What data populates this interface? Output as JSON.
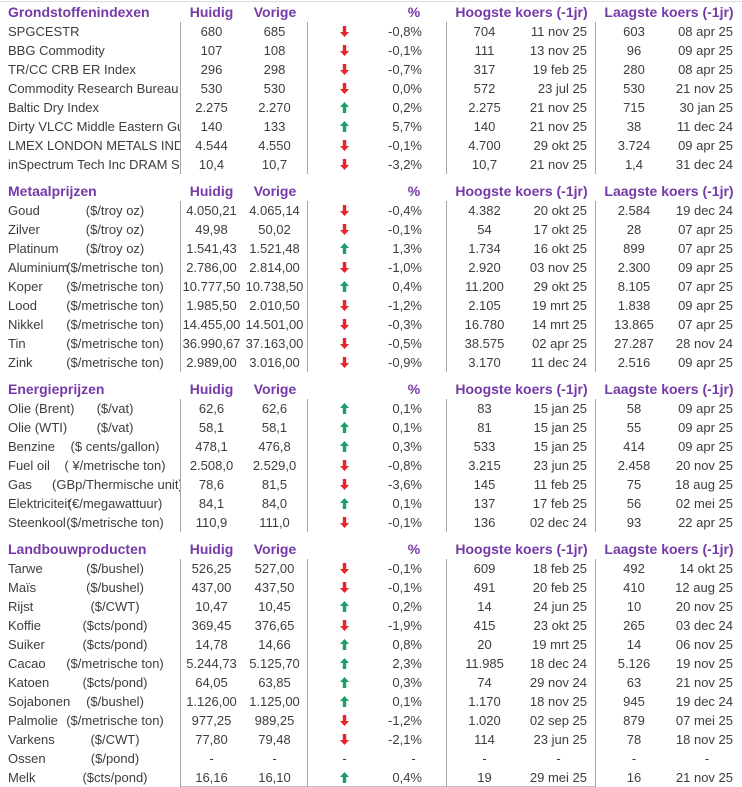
{
  "colors": {
    "header_purple": "#7639a8",
    "up_green": "#1d9e68",
    "down_red": "#e82329",
    "divider": "#a6a6a6",
    "text": "#3d3d3d"
  },
  "table": {
    "column_headers": {
      "current": "Huidig",
      "previous": "Vorige",
      "percent": "%",
      "high": "Hoogste koers (-1jr)",
      "low": "Laagste koers (-1jr)"
    },
    "sections": [
      {
        "title": "Grondstoffenindexen",
        "rows": [
          {
            "name": "SPGCESTR",
            "unit": "",
            "current": "680",
            "previous": "685",
            "trend": "down",
            "percent": "-0,8%",
            "high": "704",
            "high_date": "11 nov 25",
            "low": "603",
            "low_date": "08 apr 25"
          },
          {
            "name": "BBG Commodity",
            "unit": "",
            "current": "107",
            "previous": "108",
            "trend": "down",
            "percent": "-0,1%",
            "high": "111",
            "high_date": "13 nov 25",
            "low": "96",
            "low_date": "09 apr 25"
          },
          {
            "name": "TR/CC CRB ER Index",
            "unit": "",
            "current": "296",
            "previous": "298",
            "trend": "down",
            "percent": "-0,7%",
            "high": "317",
            "high_date": "19 feb 25",
            "low": "280",
            "low_date": "08 apr 25"
          },
          {
            "name": "Commodity Research Bureau BLS",
            "unit": "",
            "current": "530",
            "previous": "530",
            "trend": "down",
            "percent": "0,0%",
            "high": "572",
            "high_date": "23 jul 25",
            "low": "530",
            "low_date": "21 nov 25"
          },
          {
            "name": "Baltic Dry Index",
            "unit": "",
            "current": "2.275",
            "previous": "2.270",
            "trend": "up",
            "percent": "0,2%",
            "high": "2.275",
            "high_date": "21 nov 25",
            "low": "715",
            "low_date": "30 jan 25"
          },
          {
            "name": "Dirty VLCC Middle Eastern Gulf",
            "unit": "",
            "current": "140",
            "previous": "133",
            "trend": "up",
            "percent": "5,7%",
            "high": "140",
            "high_date": "21 nov 25",
            "low": "38",
            "low_date": "11 dec 24"
          },
          {
            "name": "LMEX LONDON METALS INDEX",
            "unit": "",
            "current": "4.544",
            "previous": "4.550",
            "trend": "down",
            "percent": "-0,1%",
            "high": "4.700",
            "high_date": "29 okt 25",
            "low": "3.724",
            "low_date": "09 apr 25"
          },
          {
            "name": "inSpectrum Tech Inc DRAM Spot",
            "unit": "",
            "current": "10,4",
            "previous": "10,7",
            "trend": "down",
            "percent": "-3,2%",
            "high": "10,7",
            "high_date": "21 nov 25",
            "low": "1,4",
            "low_date": "31 dec 24"
          }
        ]
      },
      {
        "title": "Metaalprijzen",
        "rows": [
          {
            "name": "Goud",
            "unit": "($/troy oz)",
            "current": "4.050,21",
            "previous": "4.065,14",
            "trend": "down",
            "percent": "-0,4%",
            "high": "4.382",
            "high_date": "20 okt 25",
            "low": "2.584",
            "low_date": "19 dec 24"
          },
          {
            "name": "Zilver",
            "unit": "($/troy oz)",
            "current": "49,98",
            "previous": "50,02",
            "trend": "down",
            "percent": "-0,1%",
            "high": "54",
            "high_date": "17 okt 25",
            "low": "28",
            "low_date": "07 apr 25"
          },
          {
            "name": "Platinum",
            "unit": "($/troy oz)",
            "current": "1.541,43",
            "previous": "1.521,48",
            "trend": "up",
            "percent": "1,3%",
            "high": "1.734",
            "high_date": "16 okt 25",
            "low": "899",
            "low_date": "07 apr 25"
          },
          {
            "name": "Aluminium",
            "unit": "($/metrische ton)",
            "current": "2.786,00",
            "previous": "2.814,00",
            "trend": "down",
            "percent": "-1,0%",
            "high": "2.920",
            "high_date": "03 nov 25",
            "low": "2.300",
            "low_date": "09 apr 25"
          },
          {
            "name": "Koper",
            "unit": "($/metrische ton)",
            "current": "10.777,50",
            "previous": "10.738,50",
            "trend": "up",
            "percent": "0,4%",
            "high": "11.200",
            "high_date": "29 okt 25",
            "low": "8.105",
            "low_date": "07 apr 25"
          },
          {
            "name": "Lood",
            "unit": "($/metrische ton)",
            "current": "1.985,50",
            "previous": "2.010,50",
            "trend": "down",
            "percent": "-1,2%",
            "high": "2.105",
            "high_date": "19 mrt 25",
            "low": "1.838",
            "low_date": "09 apr 25"
          },
          {
            "name": "Nikkel",
            "unit": "($/metrische ton)",
            "current": "14.455,00",
            "previous": "14.501,00",
            "trend": "down",
            "percent": "-0,3%",
            "high": "16.780",
            "high_date": "14 mrt 25",
            "low": "13.865",
            "low_date": "07 apr 25"
          },
          {
            "name": "Tin",
            "unit": "($/metrische ton)",
            "current": "36.990,67",
            "previous": "37.163,00",
            "trend": "down",
            "percent": "-0,5%",
            "high": "38.575",
            "high_date": "02 apr 25",
            "low": "27.287",
            "low_date": "28 nov 24"
          },
          {
            "name": "Zink",
            "unit": "($/metrische ton)",
            "current": "2.989,00",
            "previous": "3.016,00",
            "trend": "down",
            "percent": "-0,9%",
            "high": "3.170",
            "high_date": "11 dec 24",
            "low": "2.516",
            "low_date": "09 apr 25"
          }
        ]
      },
      {
        "title": "Energieprijzen",
        "rows": [
          {
            "name": "Olie (Brent)",
            "unit": "($/vat)",
            "current": "62,6",
            "previous": "62,6",
            "trend": "up",
            "percent": "0,1%",
            "high": "83",
            "high_date": "15 jan 25",
            "low": "58",
            "low_date": "09 apr 25"
          },
          {
            "name": "Olie (WTI)",
            "unit": "($/vat)",
            "current": "58,1",
            "previous": "58,1",
            "trend": "up",
            "percent": "0,1%",
            "high": "81",
            "high_date": "15 jan 25",
            "low": "55",
            "low_date": "09 apr 25"
          },
          {
            "name": "Benzine",
            "unit": "($ cents/gallon)",
            "current": "478,1",
            "previous": "476,8",
            "trend": "up",
            "percent": "0,3%",
            "high": "533",
            "high_date": "15 jan 25",
            "low": "414",
            "low_date": "09 apr 25"
          },
          {
            "name": "Fuel oil",
            "unit": "( ¥/metrische ton)",
            "current": "2.508,0",
            "previous": "2.529,0",
            "trend": "down",
            "percent": "-0,8%",
            "high": "3.215",
            "high_date": "23 jun 25",
            "low": "2.458",
            "low_date": "20 nov 25"
          },
          {
            "name": "Gas",
            "unit": "(GBp/Thermische unit)",
            "current": "78,6",
            "previous": "81,5",
            "trend": "down",
            "percent": "-3,6%",
            "high": "145",
            "high_date": "11 feb 25",
            "low": "75",
            "low_date": "18 aug 25"
          },
          {
            "name": "Elektriciteit",
            "unit": "(€/megawattuur)",
            "current": "84,1",
            "previous": "84,0",
            "trend": "up",
            "percent": "0,1%",
            "high": "137",
            "high_date": "17 feb 25",
            "low": "56",
            "low_date": "02 mei 25"
          },
          {
            "name": "Steenkool",
            "unit": "($/metrische ton)",
            "current": "110,9",
            "previous": "111,0",
            "trend": "down",
            "percent": "-0,1%",
            "high": "136",
            "high_date": "02 dec 24",
            "low": "93",
            "low_date": "22 apr 25"
          }
        ]
      },
      {
        "title": "Landbouwproducten",
        "rows": [
          {
            "name": "Tarwe",
            "unit": "($/bushel)",
            "current": "526,25",
            "previous": "527,00",
            "trend": "down",
            "percent": "-0,1%",
            "high": "609",
            "high_date": "18 feb 25",
            "low": "492",
            "low_date": "14 okt 25"
          },
          {
            "name": "Maïs",
            "unit": "($/bushel)",
            "current": "437,00",
            "previous": "437,50",
            "trend": "down",
            "percent": "-0,1%",
            "high": "491",
            "high_date": "20 feb 25",
            "low": "410",
            "low_date": "12 aug 25"
          },
          {
            "name": "Rijst",
            "unit": "($/CWT)",
            "current": "10,47",
            "previous": "10,45",
            "trend": "up",
            "percent": "0,2%",
            "high": "14",
            "high_date": "24 jun 25",
            "low": "10",
            "low_date": "20 nov 25"
          },
          {
            "name": "Koffie",
            "unit": "($cts/pond)",
            "current": "369,45",
            "previous": "376,65",
            "trend": "down",
            "percent": "-1,9%",
            "high": "415",
            "high_date": "23 okt 25",
            "low": "265",
            "low_date": "03 dec 24"
          },
          {
            "name": "Suiker",
            "unit": "($cts/pond)",
            "current": "14,78",
            "previous": "14,66",
            "trend": "up",
            "percent": "0,8%",
            "high": "20",
            "high_date": "19 mrt 25",
            "low": "14",
            "low_date": "06 nov 25"
          },
          {
            "name": "Cacao",
            "unit": "($/metrische ton)",
            "current": "5.244,73",
            "previous": "5.125,70",
            "trend": "up",
            "percent": "2,3%",
            "high": "11.985",
            "high_date": "18 dec 24",
            "low": "5.126",
            "low_date": "19 nov 25"
          },
          {
            "name": "Katoen",
            "unit": "($cts/pond)",
            "current": "64,05",
            "previous": "63,85",
            "trend": "up",
            "percent": "0,3%",
            "high": "74",
            "high_date": "29 nov 24",
            "low": "63",
            "low_date": "21 nov 25"
          },
          {
            "name": "Sojabonen",
            "unit": "($/bushel)",
            "current": "1.126,00",
            "previous": "1.125,00",
            "trend": "up",
            "percent": "0,1%",
            "high": "1.170",
            "high_date": "18 nov 25",
            "low": "945",
            "low_date": "19 dec 24"
          },
          {
            "name": "Palmolie",
            "unit": "($/metrische ton)",
            "current": "977,25",
            "previous": "989,25",
            "trend": "down",
            "percent": "-1,2%",
            "high": "1.020",
            "high_date": "02 sep 25",
            "low": "879",
            "low_date": "07 mei 25"
          },
          {
            "name": "Varkens",
            "unit": "($/CWT)",
            "current": "77,80",
            "previous": "79,48",
            "trend": "down",
            "percent": "-2,1%",
            "high": "114",
            "high_date": "23 jun 25",
            "low": "78",
            "low_date": "18 nov 25"
          },
          {
            "name": "Ossen",
            "unit": "($/pond)",
            "current": "-",
            "previous": "-",
            "trend": "none",
            "percent": "-",
            "high": "-",
            "high_date": "-",
            "low": "-",
            "low_date": "-"
          },
          {
            "name": "Melk",
            "unit": "($cts/pond)",
            "current": "16,16",
            "previous": "16,10",
            "trend": "up",
            "percent": "0,4%",
            "high": "19",
            "high_date": "29 mei 25",
            "low": "16",
            "low_date": "21 nov 25"
          }
        ]
      }
    ]
  }
}
